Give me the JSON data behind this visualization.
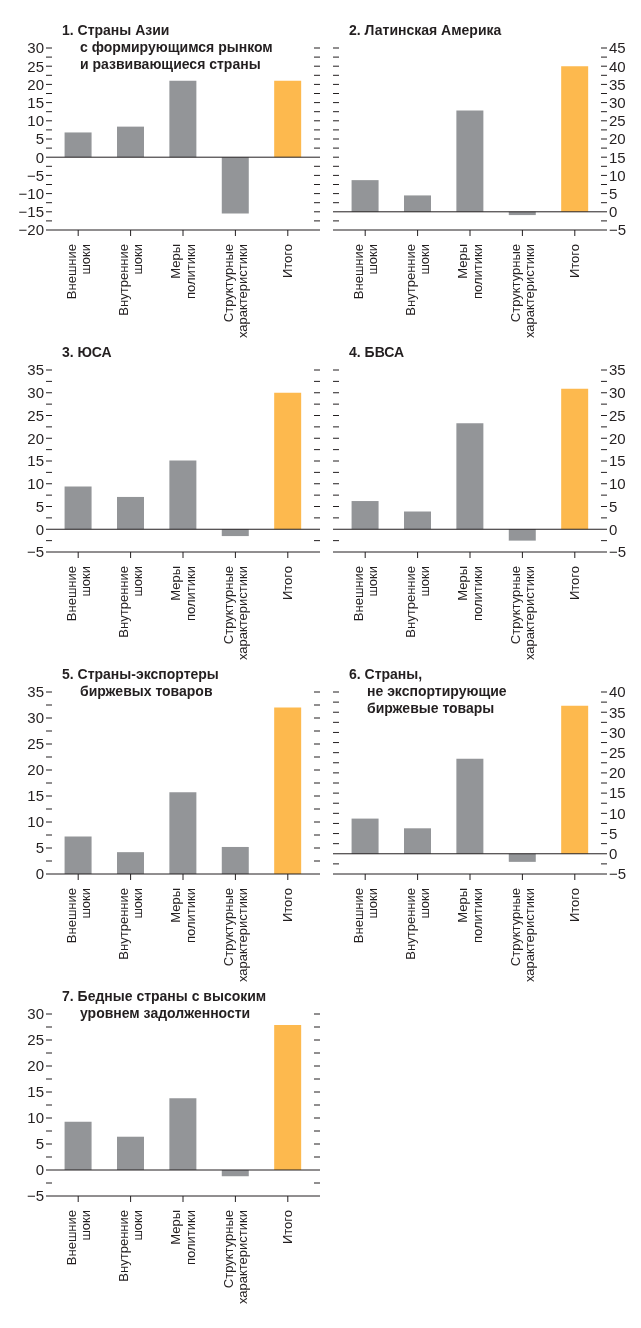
{
  "chart_data": [
    {
      "type": "bar",
      "title": "1. Страны Азии\nс формирующимся рынком\nи развивающиеся страны",
      "categories": [
        "Внешние шоки",
        "Внутренние шоки",
        "Меры политики",
        "Структурные характеристики",
        "Итого"
      ],
      "values": [
        6.8,
        8.4,
        21,
        -15.5,
        21
      ],
      "colors": [
        "#939598",
        "#939598",
        "#939598",
        "#939598",
        "#fdb94e"
      ],
      "ylim": [
        -20,
        30
      ],
      "yticks": [
        {
          "value": -20,
          "label": "−20"
        },
        {
          "value": -17.5,
          "label": null
        },
        {
          "value": -15,
          "label": "−15"
        },
        {
          "value": -12.5,
          "label": null
        },
        {
          "value": -10,
          "label": "−10"
        },
        {
          "value": -7.5,
          "label": null
        },
        {
          "value": -5,
          "label": "−5"
        },
        {
          "value": -2.5,
          "label": null
        },
        0,
        {
          "value": 2.5,
          "label": null
        },
        5,
        {
          "value": 7.5,
          "label": null
        },
        10,
        {
          "value": 12.5,
          "label": null
        },
        15,
        {
          "value": 17.5,
          "label": null
        },
        20,
        {
          "value": 22.5,
          "label": null
        },
        25,
        {
          "value": 27.5,
          "label": null
        },
        30
      ]
    },
    {
      "type": "bar",
      "title": "2. Латинская Америка",
      "categories": [
        "Внешние шоки",
        "Внутренние шоки",
        "Меры политики",
        "Структурные характеристики",
        "Итого"
      ],
      "series": [
        {
          "axis": "y2",
          "values": [
            8.7,
            4.5,
            27.8,
            -0.9,
            40
          ]
        }
      ],
      "colors": [
        "#939598",
        "#939598",
        "#939598",
        "#939598",
        "#fdb94e"
      ],
      "y2lim": [
        -5,
        45
      ],
      "y2ticks": [
        {
          "value": -5,
          "label": "−5"
        },
        {
          "value": -2.5,
          "label": null
        },
        0,
        {
          "value": 2.5,
          "label": null
        },
        5,
        {
          "value": 7.5,
          "label": null
        },
        10,
        {
          "value": 12.5,
          "label": null
        },
        15,
        {
          "value": 17.5,
          "label": null
        },
        20,
        {
          "value": 22.5,
          "label": null
        },
        25,
        {
          "value": 27.5,
          "label": null
        },
        30,
        {
          "value": 32.5,
          "label": null
        },
        35,
        {
          "value": 37.5,
          "label": null
        },
        40,
        {
          "value": 42.5,
          "label": null
        },
        45
      ]
    },
    {
      "type": "bar",
      "title": "3. ЮСА",
      "categories": [
        "Внешние шоки",
        "Внутренние шоки",
        "Меры политики",
        "Структурные характеристики",
        "Итого"
      ],
      "values": [
        9.4,
        7.1,
        15.1,
        -1.5,
        30
      ],
      "colors": [
        "#939598",
        "#939598",
        "#939598",
        "#939598",
        "#fdb94e"
      ],
      "ylim": [
        -5,
        35
      ],
      "yticks": [
        {
          "value": -5,
          "label": "−5"
        },
        {
          "value": -2.5,
          "label": null
        },
        0,
        {
          "value": 2.5,
          "label": null
        },
        5,
        {
          "value": 7.5,
          "label": null
        },
        10,
        {
          "value": 12.5,
          "label": null
        },
        15,
        {
          "value": 17.5,
          "label": null
        },
        20,
        {
          "value": 22.5,
          "label": null
        },
        25,
        {
          "value": 27.5,
          "label": null
        },
        30,
        {
          "value": 32.5,
          "label": null
        },
        35
      ]
    },
    {
      "type": "bar",
      "title": "4. БВСА",
      "categories": [
        "Внешние шоки",
        "Внутренние шоки",
        "Меры политики",
        "Структурные характеристики",
        "Итого"
      ],
      "series": [
        {
          "axis": "y2",
          "values": [
            6.2,
            3.9,
            23.3,
            -2.5,
            30.9
          ]
        }
      ],
      "colors": [
        "#939598",
        "#939598",
        "#939598",
        "#939598",
        "#fdb94e"
      ],
      "y2lim": [
        -5,
        35
      ],
      "y2ticks": [
        {
          "value": -5,
          "label": "−5"
        },
        {
          "value": -2.5,
          "label": null
        },
        0,
        {
          "value": 2.5,
          "label": null
        },
        5,
        {
          "value": 7.5,
          "label": null
        },
        10,
        {
          "value": 12.5,
          "label": null
        },
        15,
        {
          "value": 17.5,
          "label": null
        },
        20,
        {
          "value": 22.5,
          "label": null
        },
        25,
        {
          "value": 27.5,
          "label": null
        },
        30,
        {
          "value": 32.5,
          "label": null
        },
        35
      ]
    },
    {
      "type": "bar",
      "title": "5. Страны-экспортеры\nбиржевых товаров",
      "categories": [
        "Внешние шоки",
        "Внутренние шоки",
        "Меры политики",
        "Структурные характеристики",
        "Итого"
      ],
      "values": [
        7.2,
        4.2,
        15.7,
        5.2,
        32
      ],
      "colors": [
        "#939598",
        "#939598",
        "#939598",
        "#939598",
        "#fdb94e"
      ],
      "ylim": [
        0,
        35
      ],
      "yticks": [
        0,
        {
          "value": 2.5,
          "label": null
        },
        5,
        {
          "value": 7.5,
          "label": null
        },
        10,
        {
          "value": 12.5,
          "label": null
        },
        15,
        {
          "value": 17.5,
          "label": null
        },
        20,
        {
          "value": 22.5,
          "label": null
        },
        25,
        {
          "value": 27.5,
          "label": null
        },
        30,
        {
          "value": 32.5,
          "label": null
        },
        35
      ]
    },
    {
      "type": "bar",
      "title": "6. Страны,\nне экспортирующие\nбиржевые товары",
      "categories": [
        "Внешние шоки",
        "Внутренние шоки",
        "Меры политики",
        "Структурные характеристики",
        "Итого"
      ],
      "series": [
        {
          "axis": "y2",
          "values": [
            8.7,
            6.3,
            23.5,
            -2,
            36.6
          ]
        }
      ],
      "colors": [
        "#939598",
        "#939598",
        "#939598",
        "#939598",
        "#fdb94e"
      ],
      "y2lim": [
        -5,
        40
      ],
      "y2ticks": [
        {
          "value": -5,
          "label": "−5"
        },
        {
          "value": -2.5,
          "label": null
        },
        0,
        {
          "value": 2.5,
          "label": null
        },
        5,
        {
          "value": 7.5,
          "label": null
        },
        10,
        {
          "value": 12.5,
          "label": null
        },
        15,
        {
          "value": 17.5,
          "label": null
        },
        20,
        {
          "value": 22.5,
          "label": null
        },
        25,
        {
          "value": 27.5,
          "label": null
        },
        30,
        {
          "value": 32.5,
          "label": null
        },
        35,
        {
          "value": 37.5,
          "label": null
        },
        40
      ]
    },
    {
      "type": "bar",
      "title": "7. Бедные страны с высоким\nуровнем задолженности",
      "categories": [
        "Внешние шоки",
        "Внутренние шоки",
        "Меры политики",
        "Структурные характеристики",
        "Итого"
      ],
      "values": [
        9.3,
        6.4,
        13.8,
        -1.2,
        27.9
      ],
      "colors": [
        "#939598",
        "#939598",
        "#939598",
        "#939598",
        "#fdb94e"
      ],
      "ylim": [
        -5,
        30
      ],
      "yticks": [
        {
          "value": -5,
          "label": "−5"
        },
        {
          "value": -2.5,
          "label": null
        },
        0,
        {
          "value": 2.5,
          "label": null
        },
        5,
        {
          "value": 7.5,
          "label": null
        },
        10,
        {
          "value": 12.5,
          "label": null
        },
        15,
        {
          "value": 17.5,
          "label": null
        },
        20,
        {
          "value": 22.5,
          "label": null
        },
        25,
        {
          "value": 27.5,
          "label": null
        },
        30
      ]
    }
  ]
}
